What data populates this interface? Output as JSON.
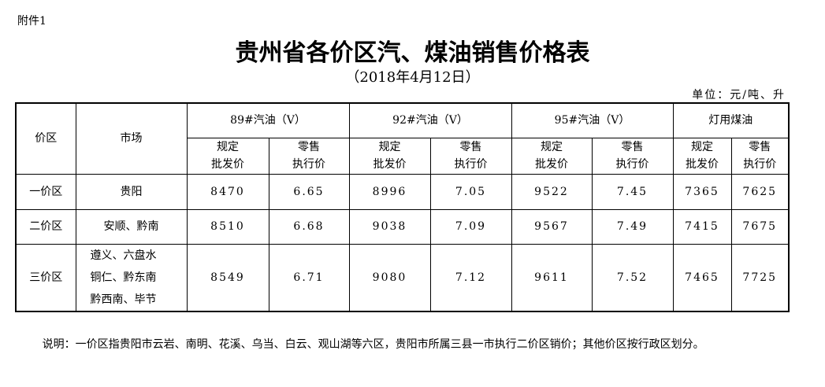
{
  "header": {
    "attachment": "附件1",
    "title": "贵州省各价区汽、煤油销售价格表",
    "date": "（2018年4月12日）",
    "unit": "单位：元/吨、升"
  },
  "table": {
    "zone_header": "价区",
    "market_header": "市场",
    "groups": [
      "89#汽油（Ⅴ）",
      "92#汽油（Ⅴ）",
      "95#汽油（Ⅴ）",
      "灯用煤油"
    ],
    "sub_headers": [
      [
        "规定",
        "批发价"
      ],
      [
        "零售",
        "执行价"
      ],
      [
        "规定",
        "批发价"
      ],
      [
        "零售",
        "执行价"
      ],
      [
        "规定",
        "批发价"
      ],
      [
        "零售",
        "执行价"
      ],
      [
        "规定",
        "批发价"
      ],
      [
        "零售",
        "执行价"
      ]
    ],
    "rows": [
      {
        "zone": "一价区",
        "market": [
          "贵阳"
        ],
        "prices": [
          8470,
          6.65,
          8996,
          7.05,
          9522,
          7.45,
          7365,
          7625
        ]
      },
      {
        "zone": "二价区",
        "market": [
          "安顺、黔南"
        ],
        "prices": [
          8510,
          6.68,
          9038,
          7.09,
          9567,
          7.49,
          7415,
          7675
        ]
      },
      {
        "zone": "三价区",
        "market": [
          "遵义、六盘水",
          "铜仁、黔东南",
          "黔西南、毕节"
        ],
        "prices": [
          8549,
          6.71,
          9080,
          7.12,
          9611,
          7.52,
          7465,
          7725
        ]
      }
    ]
  },
  "note": "说明：一价区指贵阳市云岩、南明、花溪、乌当、白云、观山湖等六区，贵阳市所属三县一市执行二价区销价；其他价区按行政区划分。"
}
